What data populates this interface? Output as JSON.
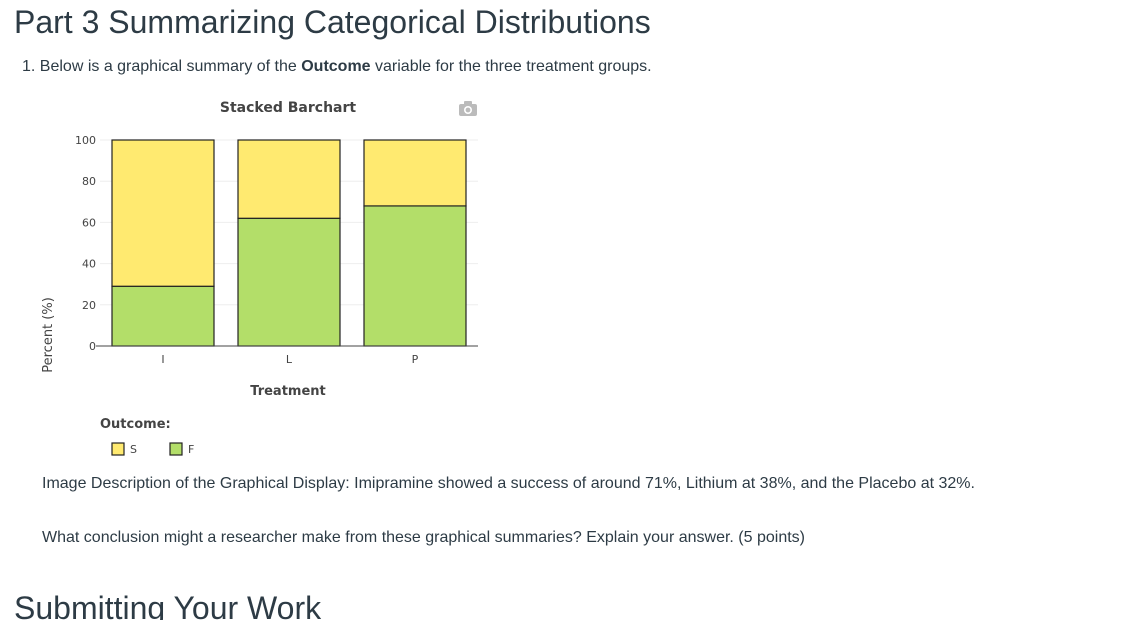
{
  "page": {
    "title": "Part 3 Summarizing Categorical Distributions",
    "question_prefix": "1. Below is a graphical summary of the ",
    "question_bold": "Outcome",
    "question_suffix": " variable for the three treatment groups.",
    "description": "Image Description of the Graphical Display: Imipramine showed a success of around 71%, Lithium at 38%, and the Placebo at 32%.",
    "prompt": "What conclusion might a researcher make from these graphical summaries? Explain your answer. (5 points)",
    "next_heading": "Submitting Your Work"
  },
  "toolbar": {
    "camera_icon": "camera-icon"
  },
  "chart_data": {
    "type": "bar",
    "stacked": true,
    "title": "Stacked Barchart",
    "xlabel": "Treatment",
    "ylabel": "Percent (%)",
    "categories": [
      "I",
      "L",
      "P"
    ],
    "ylim": [
      0,
      100
    ],
    "yticks": [
      0,
      20,
      40,
      60,
      80,
      100
    ],
    "legend_title": "Outcome:",
    "legend_position": "bottom-left",
    "grid": true,
    "series": [
      {
        "name": "S",
        "values": [
          71,
          38,
          32
        ],
        "color": "#ffea70"
      },
      {
        "name": "F",
        "values": [
          29,
          62,
          68
        ],
        "color": "#b3de69"
      }
    ]
  }
}
